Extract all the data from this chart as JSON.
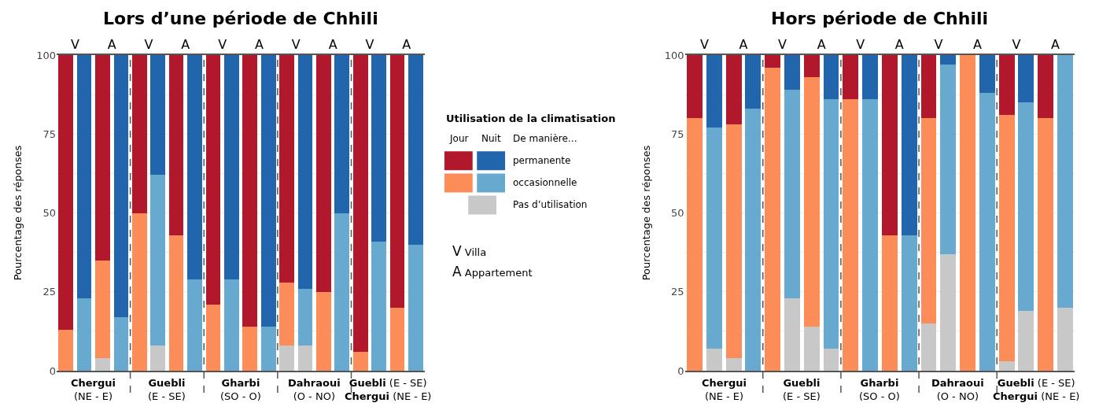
{
  "chart_data": [
    {
      "type": "bar",
      "title": "Lors d’une période de Chhili",
      "ylabel": "Pourcentage des réponses",
      "legend_title": "Utilisation de la climatisation",
      "legend": "right",
      "stacked": true,
      "grid": true,
      "categories": [
        "V",
        null,
        "A",
        null,
        "V",
        null,
        "A",
        null,
        "V",
        null,
        "A",
        null,
        "V",
        null,
        "A",
        null,
        "V",
        null,
        "A",
        null
      ],
      "ylim": [
        0,
        100
      ],
      "yticks": [
        0,
        {
          "value": 12.5,
          "label": null
        },
        25,
        {
          "value": 37.5,
          "label": null
        },
        50,
        {
          "value": 62.5,
          "label": null
        },
        75,
        {
          "value": 87.5,
          "label": null
        },
        100
      ],
      "annotations": [
        "Jour",
        "Nuit",
        "De manière…",
        "V Villa",
        "A Appartement",
        "Chergui (NE - E)",
        "Guebli (E - SE)",
        "Gharbi (SO - O)",
        "Dahraoui (O - NO)",
        "Guebli (E - SE)\nChergui (NE - E)"
      ],
      "series": [
        {
          "name": "Pas d’utilisation",
          "color": "#c8c8c8",
          "values": [
            0,
            0,
            4,
            0,
            0,
            8,
            0,
            0,
            0,
            0,
            0,
            0,
            8,
            8,
            0,
            0,
            0,
            0,
            0,
            0
          ]
        },
        {
          "name": "occasionnelle",
          "colors": [
            "#fc8d59",
            "#67a9cf",
            "#fc8d59",
            "#67a9cf",
            "#fc8d59",
            "#67a9cf",
            "#fc8d59",
            "#67a9cf",
            "#fc8d59",
            "#67a9cf",
            "#fc8d59",
            "#67a9cf",
            "#fc8d59",
            "#67a9cf",
            "#fc8d59",
            "#67a9cf",
            "#fc8d59",
            "#67a9cf",
            "#fc8d59",
            "#67a9cf"
          ],
          "values": [
            13,
            23,
            31,
            17,
            50,
            54,
            43,
            29,
            21,
            29,
            14,
            14,
            20,
            18,
            25,
            50,
            6,
            41,
            20,
            40
          ]
        },
        {
          "name": "permanente",
          "colors": [
            "#b2182b",
            "#2166ac",
            "#b2182b",
            "#2166ac",
            "#b2182b",
            "#2166ac",
            "#b2182b",
            "#2166ac",
            "#b2182b",
            "#2166ac",
            "#b2182b",
            "#2166ac",
            "#b2182b",
            "#2166ac",
            "#b2182b",
            "#2166ac",
            "#b2182b",
            "#2166ac",
            "#b2182b",
            "#2166ac"
          ],
          "values": [
            87,
            77,
            65,
            83,
            50,
            38,
            57,
            71,
            79,
            71,
            86,
            86,
            72,
            74,
            75,
            50,
            94,
            59,
            80,
            60
          ]
        }
      ]
    },
    {
      "type": "bar",
      "title": "Hors période de Chhili",
      "ylabel": "Pourcentage des réponses",
      "stacked": true,
      "grid": true,
      "categories": [
        "V",
        null,
        "A",
        null,
        "V",
        null,
        "A",
        null,
        "V",
        null,
        "A",
        null,
        "V",
        null,
        "A",
        null,
        "V",
        null,
        "A",
        null
      ],
      "ylim": [
        0,
        100
      ],
      "yticks": [
        0,
        {
          "value": 12.5,
          "label": null
        },
        25,
        {
          "value": 37.5,
          "label": null
        },
        50,
        {
          "value": 62.5,
          "label": null
        },
        75,
        {
          "value": 87.5,
          "label": null
        },
        100
      ],
      "annotations": [
        "Chergui (NE - E)",
        "Guebli (E - SE)",
        "Gharbi (SO - O)",
        "Dahraoui (O - NO)",
        "Guebli (E - SE)\nChergui (NE - E)"
      ],
      "series": [
        {
          "color": "#c8c8c8",
          "values": [
            0,
            7,
            4,
            0,
            0,
            23,
            14,
            7,
            0,
            0,
            0,
            0,
            15,
            37,
            0,
            0,
            3,
            19,
            0,
            20
          ]
        },
        {
          "colors": [
            "#fc8d59",
            "#67a9cf",
            "#fc8d59",
            "#67a9cf",
            "#fc8d59",
            "#67a9cf",
            "#fc8d59",
            "#67a9cf",
            "#fc8d59",
            "#67a9cf",
            "#fc8d59",
            "#67a9cf",
            "#fc8d59",
            "#67a9cf",
            "#fc8d59",
            "#67a9cf",
            "#fc8d59",
            "#67a9cf",
            "#fc8d59",
            "#67a9cf"
          ],
          "values": [
            80,
            70,
            74,
            83,
            96,
            66,
            79,
            79,
            86,
            86,
            43,
            43,
            65,
            60,
            100,
            88,
            78,
            66,
            80,
            80
          ]
        },
        {
          "colors": [
            "#b2182b",
            "#2166ac",
            "#b2182b",
            "#2166ac",
            "#b2182b",
            "#2166ac",
            "#b2182b",
            "#2166ac",
            "#b2182b",
            "#2166ac",
            "#b2182b",
            "#2166ac",
            "#b2182b",
            "#2166ac",
            "#b2182b",
            "#2166ac",
            "#b2182b",
            "#2166ac",
            "#b2182b",
            "#2166ac"
          ],
          "values": [
            20,
            23,
            22,
            17,
            4,
            11,
            7,
            14,
            14,
            14,
            57,
            57,
            20,
            3,
            0,
            12,
            19,
            15,
            20,
            0
          ]
        }
      ]
    }
  ]
}
